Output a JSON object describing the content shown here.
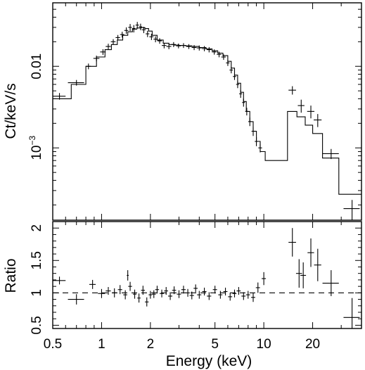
{
  "chart_data": [
    {
      "type": "scatter",
      "panel": "spectrum",
      "xlabel": "Energy (keV)",
      "ylabel": "Ct/keV/s",
      "xscale": "log",
      "yscale": "log",
      "xlim": [
        0.5,
        40
      ],
      "ylim": [
        0.00013,
        0.06
      ],
      "y_ticklabels": [
        {
          "value": 0.01,
          "text": "0.01"
        },
        {
          "value": 0.001,
          "base": "10",
          "exp": "−3"
        }
      ],
      "series": [
        {
          "x": [
            0.55,
            0.7,
            0.83,
            0.93,
            1.02,
            1.1,
            1.18,
            1.26,
            1.34,
            1.42,
            1.5,
            1.58,
            1.66,
            1.74,
            1.82,
            1.92,
            2.03,
            2.15,
            2.28,
            2.43,
            2.6,
            2.78,
            2.98,
            3.2,
            3.45,
            3.72,
            4.0,
            4.3,
            4.6,
            4.95,
            5.3,
            5.65,
            6.0,
            6.3,
            6.6,
            6.9,
            7.2,
            7.5,
            7.85,
            8.2,
            8.6,
            9.0,
            9.5,
            15.0,
            17.0,
            19.5,
            21.5,
            26.0,
            35.0
          ],
          "y": [
            0.0043,
            0.0063,
            0.01,
            0.0125,
            0.015,
            0.0175,
            0.02,
            0.0225,
            0.0245,
            0.0275,
            0.03,
            0.029,
            0.032,
            0.0305,
            0.028,
            0.025,
            0.023,
            0.0215,
            0.0205,
            0.018,
            0.0175,
            0.0185,
            0.0178,
            0.018,
            0.0175,
            0.017,
            0.0168,
            0.0165,
            0.016,
            0.015,
            0.014,
            0.013,
            0.011,
            0.009,
            0.0075,
            0.006,
            0.0046,
            0.0036,
            0.0028,
            0.0021,
            0.0016,
            0.0012,
            0.001,
            0.0051,
            0.0033,
            0.0028,
            0.0022,
            0.00085,
            0.00018
          ],
          "xerr": [
            0.05,
            0.08,
            0.03,
            0.04,
            0.04,
            0.04,
            0.04,
            0.04,
            0.04,
            0.04,
            0.04,
            0.04,
            0.04,
            0.04,
            0.05,
            0.05,
            0.06,
            0.06,
            0.07,
            0.08,
            0.09,
            0.09,
            0.1,
            0.11,
            0.12,
            0.13,
            0.14,
            0.15,
            0.15,
            0.17,
            0.17,
            0.18,
            0.15,
            0.15,
            0.15,
            0.15,
            0.15,
            0.15,
            0.17,
            0.18,
            0.2,
            0.2,
            0.25,
            0.8,
            0.8,
            1.0,
            1.2,
            3.0,
            4.0
          ],
          "yerr": [
            0.0004,
            0.0005,
            0.0008,
            0.001,
            0.0012,
            0.0014,
            0.0015,
            0.0017,
            0.002,
            0.0025,
            0.003,
            0.003,
            0.003,
            0.0028,
            0.0025,
            0.0022,
            0.002,
            0.0018,
            0.0016,
            0.0014,
            0.0013,
            0.0013,
            0.0012,
            0.0012,
            0.0012,
            0.0012,
            0.0012,
            0.0012,
            0.0012,
            0.0011,
            0.0011,
            0.001,
            0.0009,
            0.0008,
            0.0007,
            0.0006,
            0.0005,
            0.0004,
            0.0003,
            0.00025,
            0.0002,
            0.00015,
            0.00012,
            0.0006,
            0.0006,
            0.0005,
            0.0004,
            0.00012,
            5e-05
          ]
        }
      ],
      "model": {
        "x": [
          0.5,
          0.65,
          0.8,
          0.93,
          1.05,
          1.15,
          1.25,
          1.35,
          1.45,
          1.55,
          1.65,
          1.75,
          1.85,
          1.95,
          2.05,
          2.2,
          2.4,
          2.6,
          2.8,
          3.0,
          3.3,
          3.6,
          4.0,
          4.4,
          4.8,
          5.2,
          5.6,
          6.0,
          6.3,
          6.6,
          6.9,
          7.2,
          7.5,
          7.8,
          8.2,
          8.6,
          9.0,
          9.5,
          10.2,
          14.0,
          16.0,
          18.0,
          20.0,
          23.0,
          29.0,
          40.0
        ],
        "y": [
          0.004,
          0.006,
          0.01,
          0.013,
          0.016,
          0.0185,
          0.021,
          0.024,
          0.0265,
          0.0285,
          0.0295,
          0.0298,
          0.029,
          0.027,
          0.024,
          0.021,
          0.0192,
          0.0185,
          0.0182,
          0.018,
          0.0178,
          0.0175,
          0.017,
          0.0163,
          0.0155,
          0.0145,
          0.0135,
          0.0115,
          0.0095,
          0.0078,
          0.0062,
          0.0048,
          0.0037,
          0.0028,
          0.0021,
          0.0016,
          0.0012,
          0.0009,
          0.0007,
          0.0028,
          0.0024,
          0.0019,
          0.0015,
          0.00075,
          0.00027,
          0.00027
        ]
      }
    },
    {
      "type": "scatter",
      "panel": "ratio",
      "xlabel": "Energy (keV)",
      "ylabel": "Ratio",
      "xscale": "log",
      "xlim": [
        0.5,
        40
      ],
      "ylim": [
        0.45,
        2.1
      ],
      "y_ticks": [
        "0.5",
        "1",
        "1.5",
        "2"
      ],
      "x_ticks": [
        "0.5",
        "1",
        "2",
        "5",
        "10",
        "20"
      ],
      "reference_line": 1.0,
      "series": [
        {
          "x": [
            0.55,
            0.7,
            0.88,
            1.0,
            1.1,
            1.2,
            1.3,
            1.4,
            1.45,
            1.5,
            1.6,
            1.7,
            1.8,
            1.9,
            2.0,
            2.1,
            2.2,
            2.35,
            2.5,
            2.65,
            2.8,
            3.0,
            3.2,
            3.4,
            3.6,
            3.8,
            4.0,
            4.3,
            4.6,
            5.0,
            5.4,
            5.8,
            6.2,
            6.6,
            7.0,
            7.5,
            8.0,
            8.6,
            9.2,
            10.0,
            15.0,
            16.5,
            17.5,
            19.5,
            21.5,
            26.0,
            35.0
          ],
          "y": [
            1.19,
            0.9,
            1.13,
            0.99,
            1.03,
            1.0,
            1.05,
            0.97,
            1.27,
            1.1,
            0.98,
            0.92,
            1.04,
            0.86,
            0.97,
            0.98,
            1.05,
            0.99,
            1.03,
            0.95,
            1.04,
            0.98,
            1.05,
            1.0,
            0.96,
            1.07,
            0.97,
            1.02,
            0.95,
            1.05,
            0.97,
            1.02,
            0.94,
            0.99,
            1.03,
            0.95,
            0.97,
            0.93,
            1.08,
            1.22,
            1.78,
            1.3,
            1.27,
            1.62,
            1.43,
            1.15,
            0.62
          ],
          "xerr": [
            0.05,
            0.08,
            0.04,
            0.05,
            0.04,
            0.04,
            0.04,
            0.04,
            0.02,
            0.04,
            0.04,
            0.04,
            0.05,
            0.05,
            0.05,
            0.06,
            0.06,
            0.07,
            0.07,
            0.08,
            0.08,
            0.09,
            0.1,
            0.1,
            0.11,
            0.11,
            0.12,
            0.13,
            0.14,
            0.15,
            0.16,
            0.17,
            0.18,
            0.19,
            0.2,
            0.22,
            0.23,
            0.25,
            0.27,
            0.3,
            0.8,
            0.7,
            0.7,
            0.9,
            1.1,
            3.0,
            4.0
          ],
          "yerr": [
            0.06,
            0.08,
            0.07,
            0.07,
            0.06,
            0.07,
            0.07,
            0.07,
            0.08,
            0.07,
            0.07,
            0.07,
            0.07,
            0.07,
            0.06,
            0.06,
            0.06,
            0.06,
            0.06,
            0.06,
            0.06,
            0.06,
            0.06,
            0.06,
            0.06,
            0.06,
            0.06,
            0.06,
            0.06,
            0.06,
            0.06,
            0.06,
            0.06,
            0.06,
            0.06,
            0.06,
            0.06,
            0.07,
            0.08,
            0.1,
            0.22,
            0.22,
            0.2,
            0.22,
            0.25,
            0.2,
            0.3
          ]
        }
      ]
    }
  ]
}
